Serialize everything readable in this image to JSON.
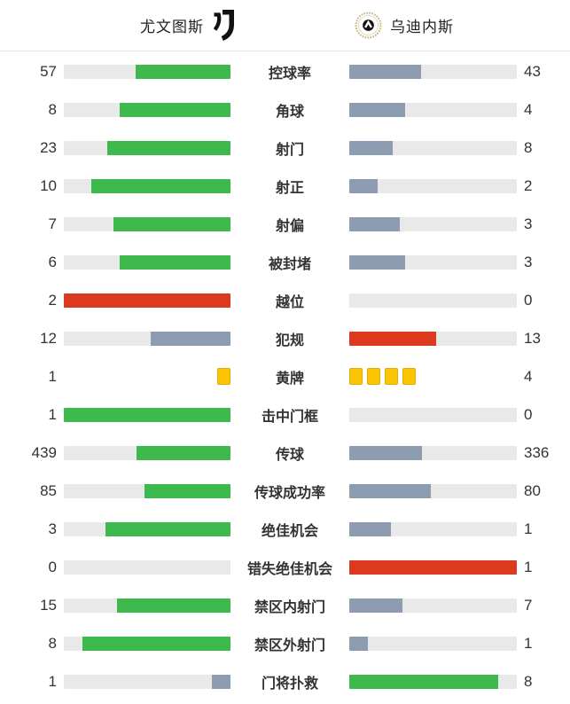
{
  "header": {
    "home": {
      "name": "尤文图斯"
    },
    "away": {
      "name": "乌迪内斯"
    }
  },
  "colors": {
    "green": "#3DB94E",
    "gray": "#8E9CB1",
    "red": "#DB3A1E",
    "card": "#FBC504",
    "track": "#E9E9E9",
    "none": "transparent"
  },
  "rows": [
    {
      "home": "57",
      "label": "控球率",
      "away": "43",
      "home_bar": {
        "color": "green",
        "pct": 57
      },
      "away_bar": {
        "color": "gray",
        "pct": 43
      }
    },
    {
      "home": "8",
      "label": "角球",
      "away": "4",
      "home_bar": {
        "color": "green",
        "pct": 66.7
      },
      "away_bar": {
        "color": "gray",
        "pct": 33.3
      }
    },
    {
      "home": "23",
      "label": "射门",
      "away": "8",
      "home_bar": {
        "color": "green",
        "pct": 74.2
      },
      "away_bar": {
        "color": "gray",
        "pct": 25.8
      }
    },
    {
      "home": "10",
      "label": "射正",
      "away": "2",
      "home_bar": {
        "color": "green",
        "pct": 83.3
      },
      "away_bar": {
        "color": "gray",
        "pct": 16.7
      }
    },
    {
      "home": "7",
      "label": "射偏",
      "away": "3",
      "home_bar": {
        "color": "green",
        "pct": 70
      },
      "away_bar": {
        "color": "gray",
        "pct": 30
      }
    },
    {
      "home": "6",
      "label": "被封堵",
      "away": "3",
      "home_bar": {
        "color": "green",
        "pct": 66.7
      },
      "away_bar": {
        "color": "gray",
        "pct": 33.3
      }
    },
    {
      "home": "2",
      "label": "越位",
      "away": "0",
      "home_bar": {
        "color": "red",
        "pct": 100
      },
      "away_bar": {
        "color": "none",
        "pct": 0
      }
    },
    {
      "home": "12",
      "label": "犯规",
      "away": "13",
      "home_bar": {
        "color": "gray",
        "pct": 48
      },
      "away_bar": {
        "color": "red",
        "pct": 52
      }
    },
    {
      "home": "1",
      "label": "黄牌",
      "away": "4",
      "type": "cards",
      "home_bar": {
        "color": "card",
        "count": 1
      },
      "away_bar": {
        "color": "card",
        "count": 4
      }
    },
    {
      "home": "1",
      "label": "击中门框",
      "away": "0",
      "home_bar": {
        "color": "green",
        "pct": 100
      },
      "away_bar": {
        "color": "none",
        "pct": 0
      }
    },
    {
      "home": "439",
      "label": "传球",
      "away": "336",
      "home_bar": {
        "color": "green",
        "pct": 56.6
      },
      "away_bar": {
        "color": "gray",
        "pct": 43.4
      }
    },
    {
      "home": "85",
      "label": "传球成功率",
      "away": "80",
      "home_bar": {
        "color": "green",
        "pct": 51.5
      },
      "away_bar": {
        "color": "gray",
        "pct": 48.5
      }
    },
    {
      "home": "3",
      "label": "绝佳机会",
      "away": "1",
      "home_bar": {
        "color": "green",
        "pct": 75
      },
      "away_bar": {
        "color": "gray",
        "pct": 25
      }
    },
    {
      "home": "0",
      "label": "错失绝佳机会",
      "away": "1",
      "home_bar": {
        "color": "none",
        "pct": 0
      },
      "away_bar": {
        "color": "red",
        "pct": 100
      }
    },
    {
      "home": "15",
      "label": "禁区内射门",
      "away": "7",
      "home_bar": {
        "color": "green",
        "pct": 68.2
      },
      "away_bar": {
        "color": "gray",
        "pct": 31.8
      }
    },
    {
      "home": "8",
      "label": "禁区外射门",
      "away": "1",
      "home_bar": {
        "color": "green",
        "pct": 88.9
      },
      "away_bar": {
        "color": "gray",
        "pct": 11.1
      }
    },
    {
      "home": "1",
      "label": "门将扑救",
      "away": "8",
      "home_bar": {
        "color": "gray",
        "pct": 11.1
      },
      "away_bar": {
        "color": "green",
        "pct": 88.9
      }
    }
  ],
  "chart_data": {
    "type": "bar",
    "orientation": "horizontal-paired",
    "title": "尤文图斯 vs 乌迪内斯 比赛数据",
    "categories": [
      "控球率",
      "角球",
      "射门",
      "射正",
      "射偏",
      "被封堵",
      "越位",
      "犯规",
      "黄牌",
      "击中门框",
      "传球",
      "传球成功率",
      "绝佳机会",
      "错失绝佳机会",
      "禁区内射门",
      "禁区外射门",
      "门将扑救"
    ],
    "series": [
      {
        "name": "尤文图斯",
        "values": [
          57,
          8,
          23,
          10,
          7,
          6,
          2,
          12,
          1,
          1,
          439,
          85,
          3,
          0,
          15,
          8,
          1
        ]
      },
      {
        "name": "乌迪内斯",
        "values": [
          43,
          4,
          8,
          2,
          3,
          3,
          0,
          13,
          4,
          0,
          336,
          80,
          1,
          1,
          7,
          1,
          8
        ]
      }
    ],
    "value_scale": "each bar filled as value / (home+away) share of track",
    "bar_color_rules": "green = better side, gray = other side, red = worse side on negative stats (越位/犯规/错失绝佳机会), yellow card icons for 黄牌",
    "grid": false,
    "legend_position": "header"
  }
}
